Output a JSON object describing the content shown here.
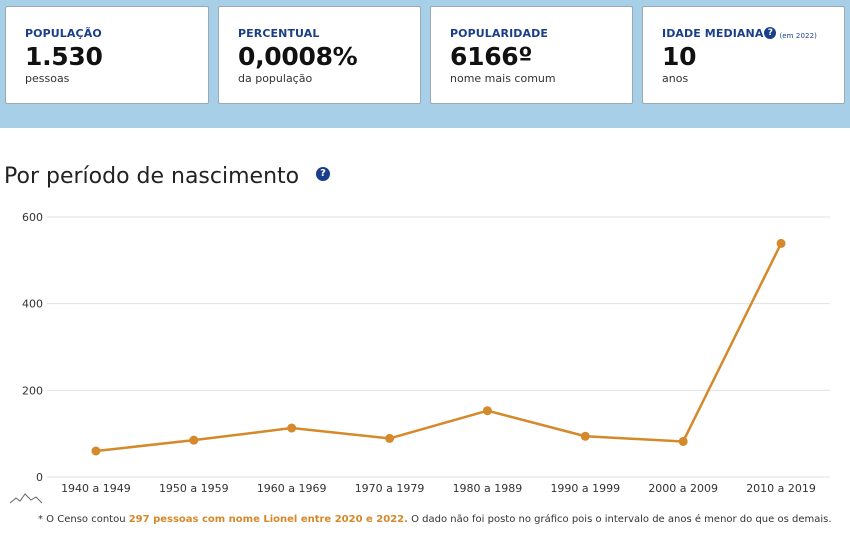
{
  "cards": [
    {
      "label": "POPULAÇÃO",
      "value": "1.530",
      "sub": "pessoas"
    },
    {
      "label": "PERCENTUAL",
      "value": "0,0008%",
      "sub": "da população"
    },
    {
      "label": "POPULARIDADE",
      "value": "6166º",
      "sub": "nome mais comum"
    },
    {
      "label": "IDADE MEDIANA",
      "help": "?",
      "note": "(em 2022)",
      "value": "10",
      "sub": "anos"
    }
  ],
  "section": {
    "title": "Por período de nascimento",
    "help": "?"
  },
  "chart_data": {
    "type": "line",
    "categories": [
      "1940 a 1949",
      "1950 a 1959",
      "1960 a 1969",
      "1970 a 1979",
      "1980 a 1989",
      "1990 a 1999",
      "2000 a 2009",
      "2010 a 2019"
    ],
    "values": [
      60,
      85,
      113,
      89,
      153,
      94,
      82,
      539
    ],
    "ylim": [
      0,
      600
    ],
    "yticks": [
      "0",
      "200",
      "400",
      "600"
    ],
    "grid": true,
    "color": "#d4892a"
  },
  "footnote": {
    "prefix": "* O Censo contou ",
    "highlight": "297 pessoas com nome Lionel entre 2020 e 2022.",
    "suffix": " O dado não foi posto no gráfico pois o intervalo de anos é menor do que os demais."
  },
  "icons": {
    "chart_logo": "mountain-line-icon"
  }
}
